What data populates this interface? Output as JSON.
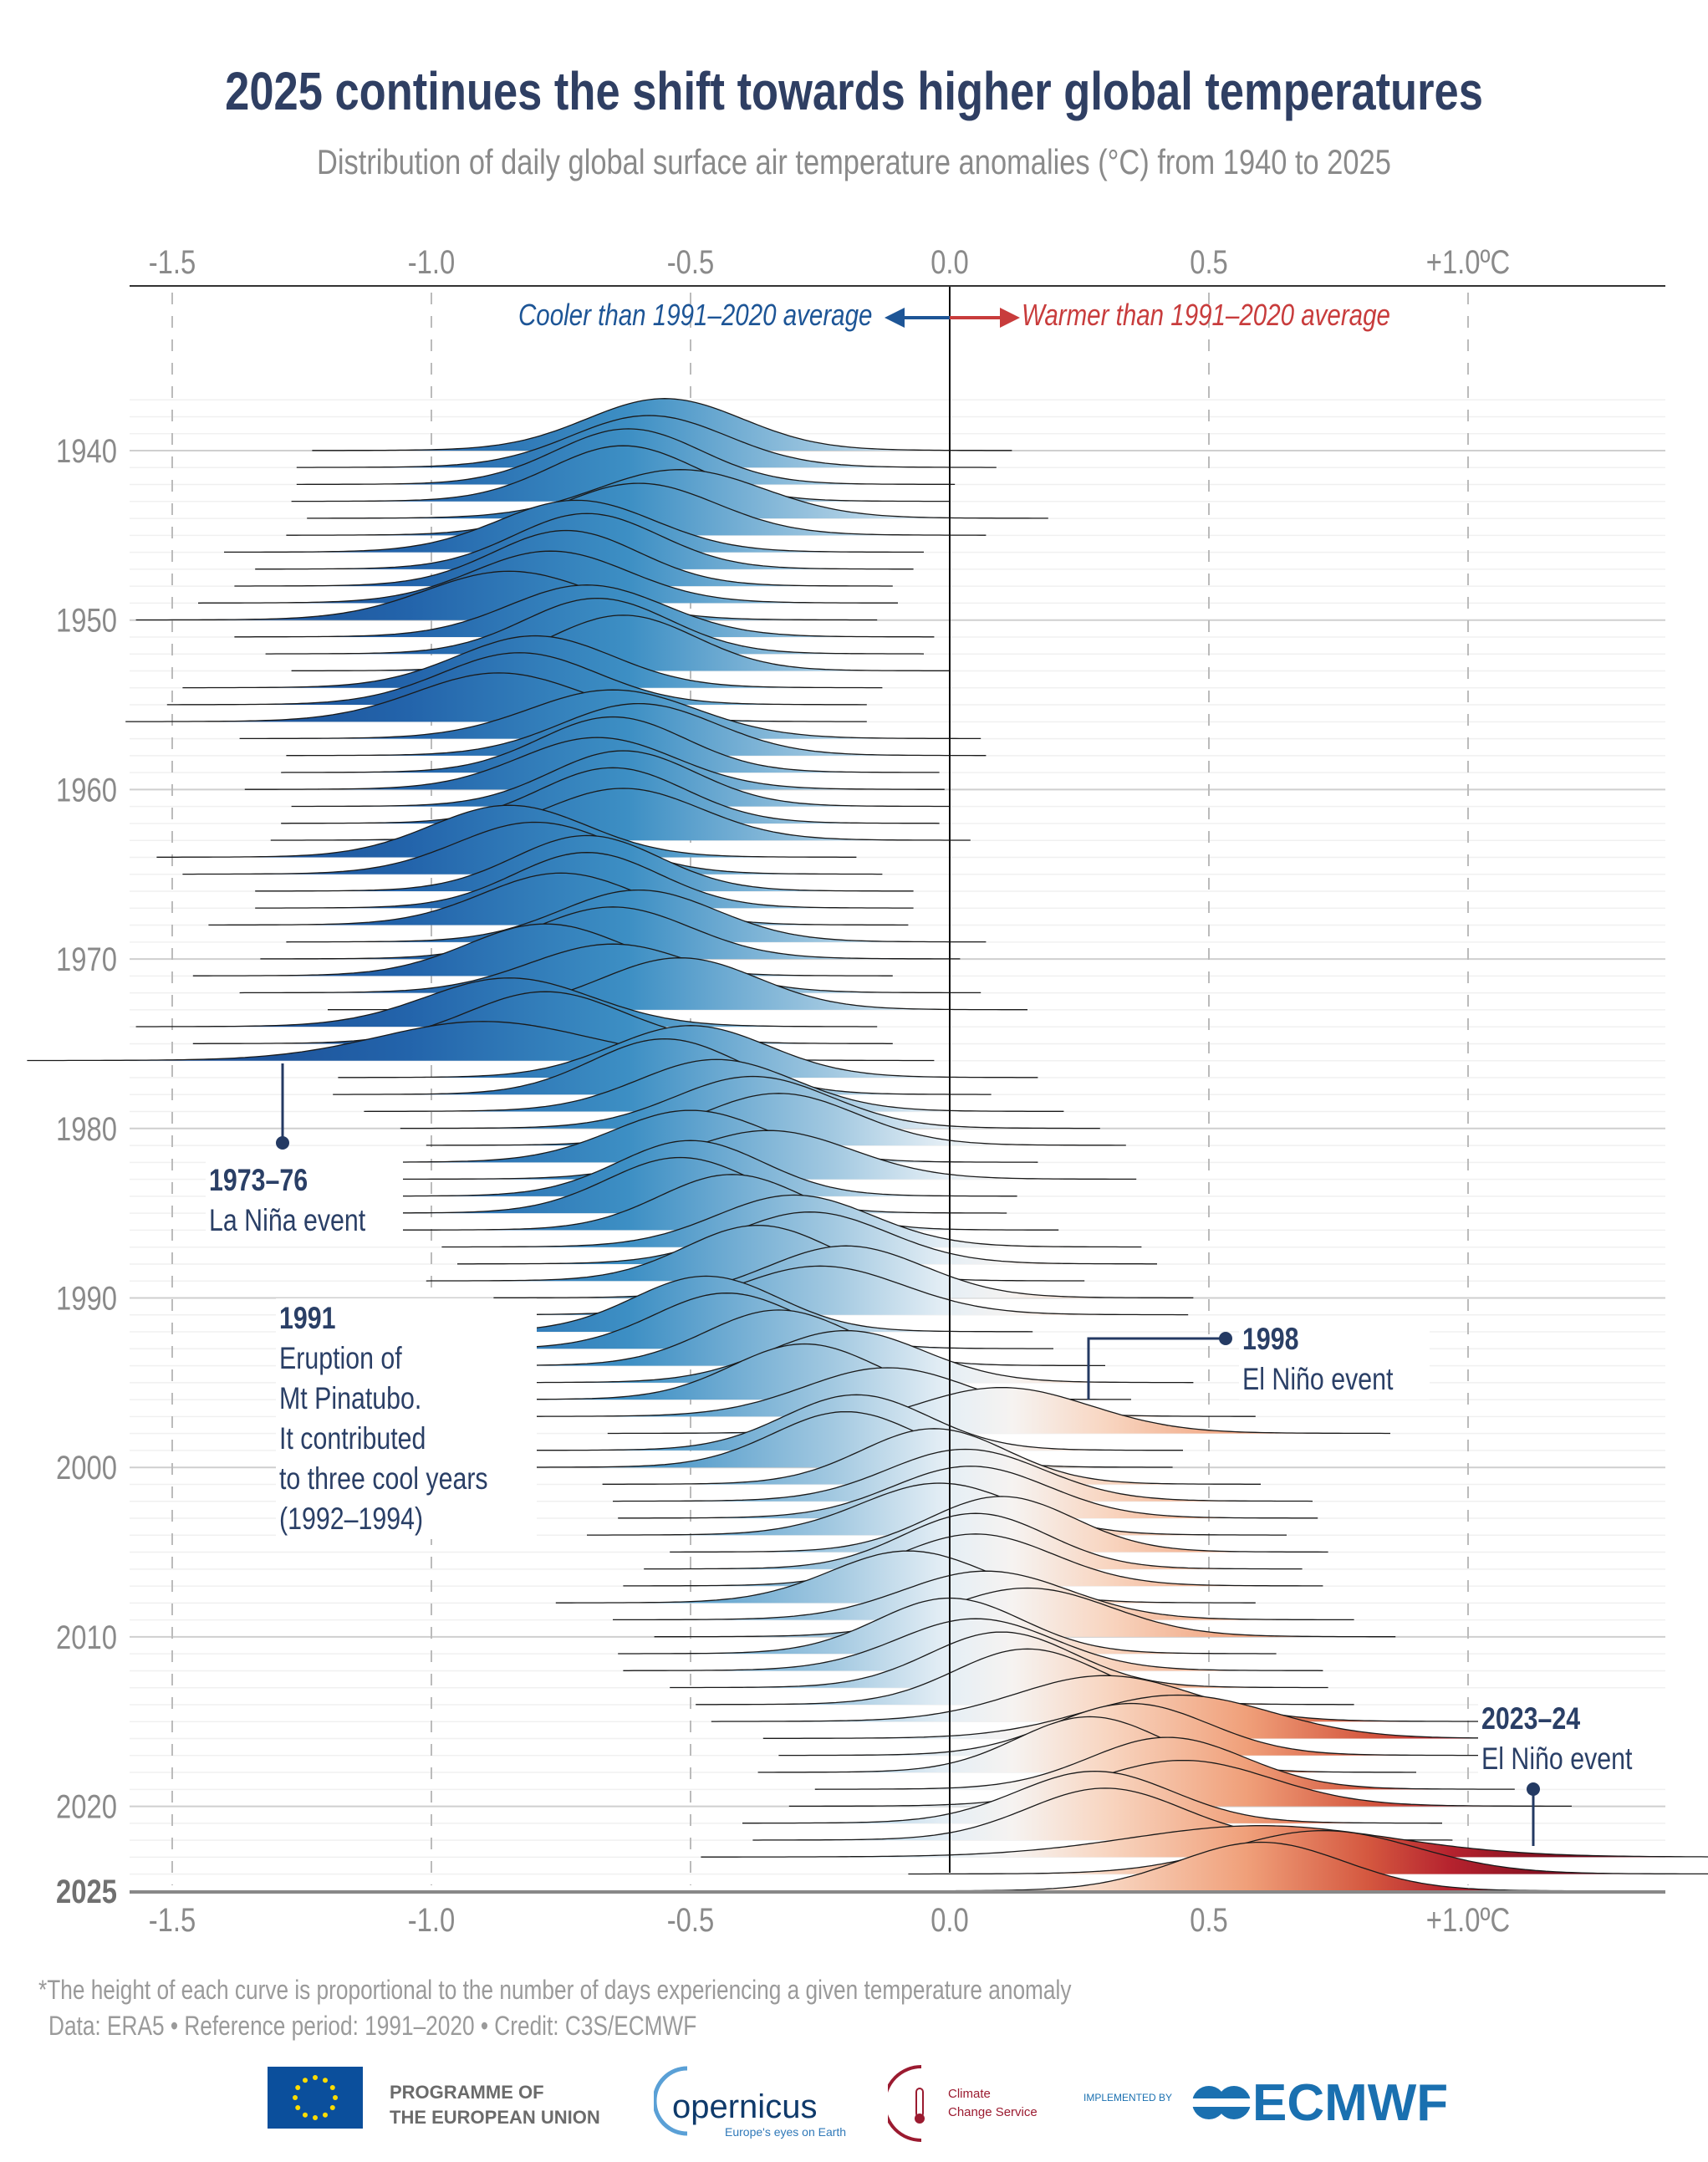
{
  "title": "2025 continues the shift towards higher global temperatures",
  "subtitle": "Distribution of daily global surface air temperature anomalies (°C) from 1940 to 2025",
  "chart_data": {
    "type": "ridgeline",
    "title": "2025 continues the shift towards higher global temperatures",
    "subtitle": "Distribution of daily global surface air temperature anomalies (°C) from 1940 to 2025",
    "xlim": [
      -1.6,
      1.4
    ],
    "x_ticks": [
      -1.5,
      -1.0,
      -0.5,
      0.0,
      0.5,
      1.0
    ],
    "x_tick_labels": [
      "-1.5",
      "-1.0",
      "-0.5",
      "0.0",
      "0.5",
      "+1.0ºC"
    ],
    "y_ticks": [
      "1940",
      "1950",
      "1960",
      "1970",
      "1980",
      "1990",
      "2000",
      "2010",
      "2020",
      "2025"
    ],
    "ylim": [
      1940,
      2025
    ],
    "grid": true,
    "reference_line": 0.0,
    "cooler_label": "Cooler than 1991–2020 average",
    "warmer_label": "Warmer than 1991–2020 average",
    "colors": {
      "cold": "#1f5ba3",
      "mid_cold": "#3f8fc5",
      "neutral": "#f4f4f4",
      "mid_warm": "#f0a07a",
      "warm": "#c8303a",
      "hot": "#7e0a1e",
      "cooler_text": "#1d5596",
      "warmer_text": "#c83c3c"
    },
    "series": [
      {
        "year": 1940,
        "mean": -0.55,
        "sd": 0.15
      },
      {
        "year": 1941,
        "mean": -0.58,
        "sd": 0.15
      },
      {
        "year": 1942,
        "mean": -0.62,
        "sd": 0.14
      },
      {
        "year": 1943,
        "mean": -0.63,
        "sd": 0.14
      },
      {
        "year": 1944,
        "mean": -0.52,
        "sd": 0.16
      },
      {
        "year": 1945,
        "mean": -0.6,
        "sd": 0.15
      },
      {
        "year": 1946,
        "mean": -0.72,
        "sd": 0.15
      },
      {
        "year": 1947,
        "mean": -0.7,
        "sd": 0.14
      },
      {
        "year": 1948,
        "mean": -0.74,
        "sd": 0.14
      },
      {
        "year": 1949,
        "mean": -0.77,
        "sd": 0.15
      },
      {
        "year": 1950,
        "mean": -0.85,
        "sd": 0.16
      },
      {
        "year": 1951,
        "mean": -0.7,
        "sd": 0.15
      },
      {
        "year": 1952,
        "mean": -0.68,
        "sd": 0.14
      },
      {
        "year": 1953,
        "mean": -0.63,
        "sd": 0.14
      },
      {
        "year": 1954,
        "mean": -0.8,
        "sd": 0.15
      },
      {
        "year": 1955,
        "mean": -0.83,
        "sd": 0.15
      },
      {
        "year": 1956,
        "mean": -0.87,
        "sd": 0.16
      },
      {
        "year": 1957,
        "mean": -0.65,
        "sd": 0.16
      },
      {
        "year": 1958,
        "mean": -0.6,
        "sd": 0.15
      },
      {
        "year": 1959,
        "mean": -0.65,
        "sd": 0.14
      },
      {
        "year": 1960,
        "mean": -0.68,
        "sd": 0.15
      },
      {
        "year": 1961,
        "mean": -0.63,
        "sd": 0.14
      },
      {
        "year": 1962,
        "mean": -0.65,
        "sd": 0.14
      },
      {
        "year": 1963,
        "mean": -0.63,
        "sd": 0.15
      },
      {
        "year": 1964,
        "mean": -0.85,
        "sd": 0.15
      },
      {
        "year": 1965,
        "mean": -0.8,
        "sd": 0.15
      },
      {
        "year": 1966,
        "mean": -0.7,
        "sd": 0.14
      },
      {
        "year": 1967,
        "mean": -0.7,
        "sd": 0.14
      },
      {
        "year": 1968,
        "mean": -0.75,
        "sd": 0.15
      },
      {
        "year": 1969,
        "mean": -0.6,
        "sd": 0.15
      },
      {
        "year": 1970,
        "mean": -0.65,
        "sd": 0.15
      },
      {
        "year": 1971,
        "mean": -0.78,
        "sd": 0.15
      },
      {
        "year": 1972,
        "mean": -0.65,
        "sd": 0.16
      },
      {
        "year": 1973,
        "mean": -0.52,
        "sd": 0.15
      },
      {
        "year": 1974,
        "mean": -0.85,
        "sd": 0.16
      },
      {
        "year": 1975,
        "mean": -0.78,
        "sd": 0.15
      },
      {
        "year": 1976,
        "mean": -0.9,
        "sd": 0.2
      },
      {
        "year": 1977,
        "mean": -0.5,
        "sd": 0.15
      },
      {
        "year": 1978,
        "mean": -0.55,
        "sd": 0.14
      },
      {
        "year": 1979,
        "mean": -0.45,
        "sd": 0.15
      },
      {
        "year": 1980,
        "mean": -0.38,
        "sd": 0.15
      },
      {
        "year": 1981,
        "mean": -0.33,
        "sd": 0.15
      },
      {
        "year": 1982,
        "mean": -0.5,
        "sd": 0.15
      },
      {
        "year": 1983,
        "mean": -0.35,
        "sd": 0.16
      },
      {
        "year": 1984,
        "mean": -0.5,
        "sd": 0.14
      },
      {
        "year": 1985,
        "mean": -0.52,
        "sd": 0.14
      },
      {
        "year": 1986,
        "mean": -0.42,
        "sd": 0.14
      },
      {
        "year": 1987,
        "mean": -0.3,
        "sd": 0.15
      },
      {
        "year": 1988,
        "mean": -0.27,
        "sd": 0.15
      },
      {
        "year": 1989,
        "mean": -0.37,
        "sd": 0.14
      },
      {
        "year": 1990,
        "mean": -0.2,
        "sd": 0.15
      },
      {
        "year": 1991,
        "mean": -0.25,
        "sd": 0.16
      },
      {
        "year": 1992,
        "mean": -0.47,
        "sd": 0.14
      },
      {
        "year": 1993,
        "mean": -0.43,
        "sd": 0.14
      },
      {
        "year": 1994,
        "mean": -0.33,
        "sd": 0.14
      },
      {
        "year": 1995,
        "mean": -0.2,
        "sd": 0.15
      },
      {
        "year": 1996,
        "mean": -0.28,
        "sd": 0.14
      },
      {
        "year": 1997,
        "mean": -0.12,
        "sd": 0.16
      },
      {
        "year": 1998,
        "mean": 0.1,
        "sd": 0.17
      },
      {
        "year": 1999,
        "mean": -0.18,
        "sd": 0.14
      },
      {
        "year": 2000,
        "mean": -0.2,
        "sd": 0.14
      },
      {
        "year": 2001,
        "mean": -0.03,
        "sd": 0.14
      },
      {
        "year": 2002,
        "mean": 0.03,
        "sd": 0.15
      },
      {
        "year": 2003,
        "mean": 0.04,
        "sd": 0.15
      },
      {
        "year": 2004,
        "mean": -0.02,
        "sd": 0.15
      },
      {
        "year": 2005,
        "mean": 0.1,
        "sd": 0.14
      },
      {
        "year": 2006,
        "mean": 0.05,
        "sd": 0.14
      },
      {
        "year": 2007,
        "mean": 0.05,
        "sd": 0.15
      },
      {
        "year": 2008,
        "mean": -0.08,
        "sd": 0.15
      },
      {
        "year": 2009,
        "mean": 0.07,
        "sd": 0.16
      },
      {
        "year": 2010,
        "mean": 0.15,
        "sd": 0.16
      },
      {
        "year": 2011,
        "mean": 0.0,
        "sd": 0.14
      },
      {
        "year": 2012,
        "mean": 0.05,
        "sd": 0.15
      },
      {
        "year": 2013,
        "mean": 0.1,
        "sd": 0.14
      },
      {
        "year": 2014,
        "mean": 0.15,
        "sd": 0.14
      },
      {
        "year": 2015,
        "mean": 0.3,
        "sd": 0.17
      },
      {
        "year": 2016,
        "mean": 0.44,
        "sd": 0.18
      },
      {
        "year": 2017,
        "mean": 0.35,
        "sd": 0.15
      },
      {
        "year": 2018,
        "mean": 0.27,
        "sd": 0.14
      },
      {
        "year": 2019,
        "mean": 0.42,
        "sd": 0.15
      },
      {
        "year": 2020,
        "mean": 0.45,
        "sd": 0.17
      },
      {
        "year": 2021,
        "mean": 0.28,
        "sd": 0.15
      },
      {
        "year": 2022,
        "mean": 0.3,
        "sd": 0.15
      },
      {
        "year": 2023,
        "mean": 0.6,
        "sd": 0.25
      },
      {
        "year": 2024,
        "mean": 0.72,
        "sd": 0.18
      },
      {
        "year": 2025,
        "mean": 0.6,
        "sd": 0.16
      }
    ],
    "annotations": [
      {
        "bold": "1973–76",
        "lines": [
          "La Niña event"
        ]
      },
      {
        "bold": "1991",
        "lines": [
          "Eruption of",
          "Mt Pinatubo.",
          "It contributed",
          "to three cool years",
          "(1992–1994)"
        ]
      },
      {
        "bold": "1998",
        "lines": [
          "El Niño event"
        ]
      },
      {
        "bold": "2023–24",
        "lines": [
          "El Niño event"
        ]
      }
    ]
  },
  "footnote": "*The height of each curve is proportional to the number of days experiencing a given temperature anomaly",
  "credits": "Data: ERA5 • Reference period: 1991–2020 • Credit: C3S/ECMWF",
  "logos": {
    "eu_line1": "PROGRAMME OF",
    "eu_line2": "THE EUROPEAN UNION",
    "copernicus": "opernicus",
    "copernicus_tag": "Europe's eyes on Earth",
    "c3s_line1": "Climate",
    "c3s_line2": "Change Service",
    "implemented_by": "IMPLEMENTED BY",
    "ecmwf": "ECMWF"
  }
}
